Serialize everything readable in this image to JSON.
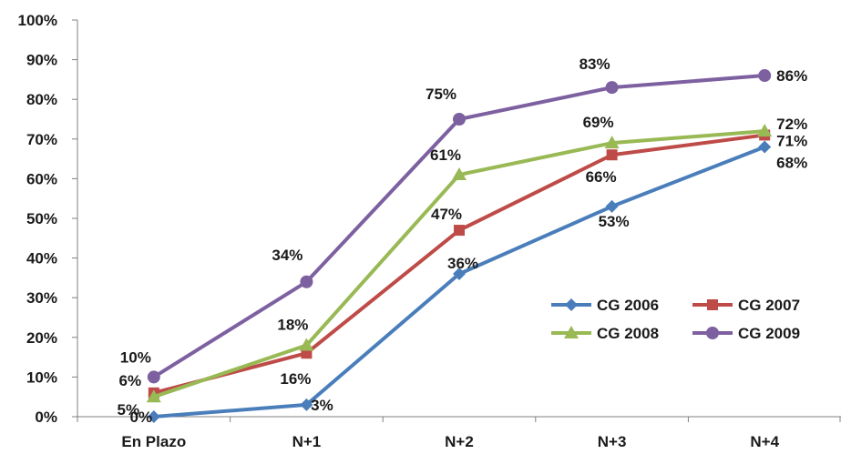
{
  "chart_data": {
    "type": "line",
    "categories": [
      "En Plazo",
      "N+1",
      "N+2",
      "N+3",
      "N+4"
    ],
    "ylim": [
      0,
      100
    ],
    "yticks": [
      "0%",
      "10%",
      "20%",
      "30%",
      "40%",
      "50%",
      "60%",
      "70%",
      "80%",
      "90%",
      "100%"
    ],
    "grid": false,
    "legend_position": "right-middle",
    "series": [
      {
        "name": "CG 2006",
        "color": "#4a7ebb",
        "marker": "diamond",
        "values": [
          0,
          3,
          36,
          53,
          68
        ],
        "labels": [
          "0%",
          "3%",
          "36%",
          "53%",
          "68%"
        ]
      },
      {
        "name": "CG 2007",
        "color": "#be4b48",
        "marker": "square",
        "values": [
          6,
          16,
          47,
          66,
          71
        ],
        "labels": [
          "6%",
          "16%",
          "47%",
          "66%",
          "71%"
        ]
      },
      {
        "name": "CG 2008",
        "color": "#98b954",
        "marker": "triangle",
        "values": [
          5,
          18,
          61,
          69,
          72
        ],
        "labels": [
          "5%",
          "18%",
          "61%",
          "69%",
          "72%"
        ]
      },
      {
        "name": "CG 2009",
        "color": "#7d60a0",
        "marker": "circle",
        "values": [
          10,
          34,
          75,
          83,
          86
        ],
        "labels": [
          "10%",
          "34%",
          "75%",
          "83%",
          "86%"
        ]
      }
    ]
  }
}
